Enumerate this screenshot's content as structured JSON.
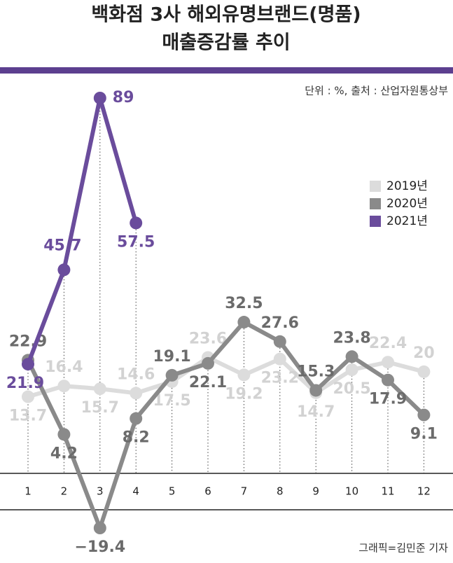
{
  "chart_data": {
    "type": "line",
    "title": "백화점 3사 해외유명브랜드(명품)",
    "subtitle": "매출증감률 추이",
    "source": "단위 : %, 출처 : 산업자원통상부",
    "credit": "그래픽=김민준 기자",
    "categories": [
      "1",
      "2",
      "3",
      "4",
      "5",
      "6",
      "7",
      "8",
      "9",
      "10",
      "11",
      "12"
    ],
    "series": [
      {
        "name": "2019년",
        "color": "#dcdcdc",
        "values": [
          13.7,
          16.4,
          15.7,
          14.6,
          17.5,
          23.6,
          19.2,
          23.2,
          14.7,
          20.5,
          22.4,
          20
        ]
      },
      {
        "name": "2020년",
        "color": "#8a8a8a",
        "values": [
          22.9,
          4.2,
          -19.4,
          8.2,
          19.1,
          22.1,
          32.5,
          27.6,
          15.3,
          23.8,
          17.9,
          9.1
        ],
        "value_labels": [
          "22.9",
          "4.2",
          "−19.4",
          "8.2",
          "19.1",
          "22.1",
          "32.5",
          "27.6",
          "15.3",
          "23.8",
          "17.9",
          "9.1"
        ]
      },
      {
        "name": "2021년",
        "color": "#6a4c9c",
        "values": [
          21.9,
          45.7,
          89,
          57.5,
          null,
          null,
          null,
          null,
          null,
          null,
          null,
          null
        ]
      }
    ]
  }
}
